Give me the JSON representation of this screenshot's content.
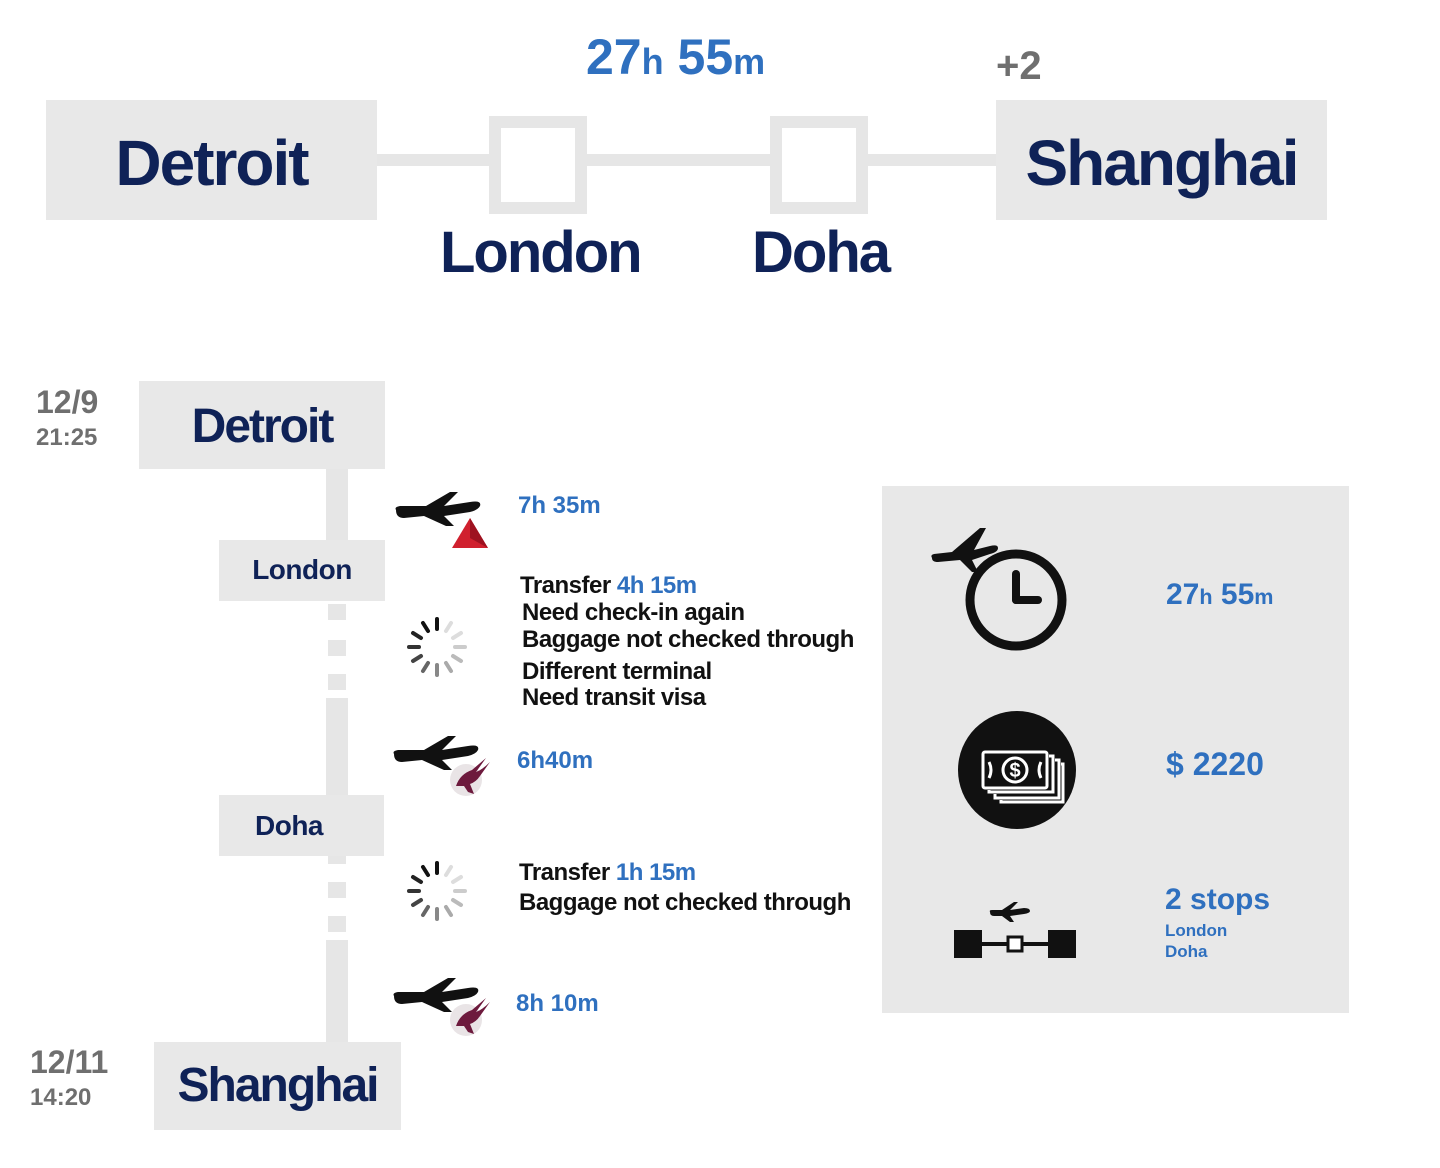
{
  "summary": {
    "duration_h": "27",
    "h_unit": "h",
    "duration_m": "55",
    "m_unit": "m",
    "day_offset": "+2",
    "origin": "Detroit",
    "stop1": "London",
    "stop2": "Doha",
    "destination": "Shanghai"
  },
  "timeline": {
    "departure": {
      "date": "12/9",
      "time": "21:25",
      "city": "Detroit"
    },
    "arrival": {
      "date": "12/11",
      "time": "14:20",
      "city": "Shanghai"
    },
    "stops": [
      {
        "city": "London"
      },
      {
        "city": "Doha"
      }
    ],
    "flights": [
      {
        "duration": "7h 35m",
        "airline_icon": "delta-logo-icon"
      },
      {
        "duration": "6h40m",
        "airline_icon": "qatar-oryx-logo-icon"
      },
      {
        "duration": "8h 10m",
        "airline_icon": "qatar-oryx-logo-icon"
      }
    ],
    "transfers": [
      {
        "label": "Transfer",
        "duration": "4h 15m",
        "notes": [
          "Need check-in again",
          "Baggage not checked through",
          "Different terminal",
          "Need transit visa"
        ]
      },
      {
        "label": "Transfer",
        "duration": "1h 15m",
        "notes": [
          "Baggage not checked through"
        ]
      }
    ]
  },
  "panel": {
    "duration_h": "27",
    "h_unit": "h",
    "duration_m": "55",
    "m_unit": "m",
    "price": "$ 2220",
    "stops_label": "2 stops",
    "stop_names": [
      "London",
      "Doha"
    ],
    "icons": [
      "plane-clock-icon",
      "money-icon",
      "stops-icon"
    ]
  },
  "colors": {
    "navy": "#0f2257",
    "blue": "#2f70bf",
    "gray": "#6f6f6f",
    "box": "#e8e8e8",
    "delta_red": "#d0202e",
    "qatar_maroon": "#6d1a3d"
  }
}
